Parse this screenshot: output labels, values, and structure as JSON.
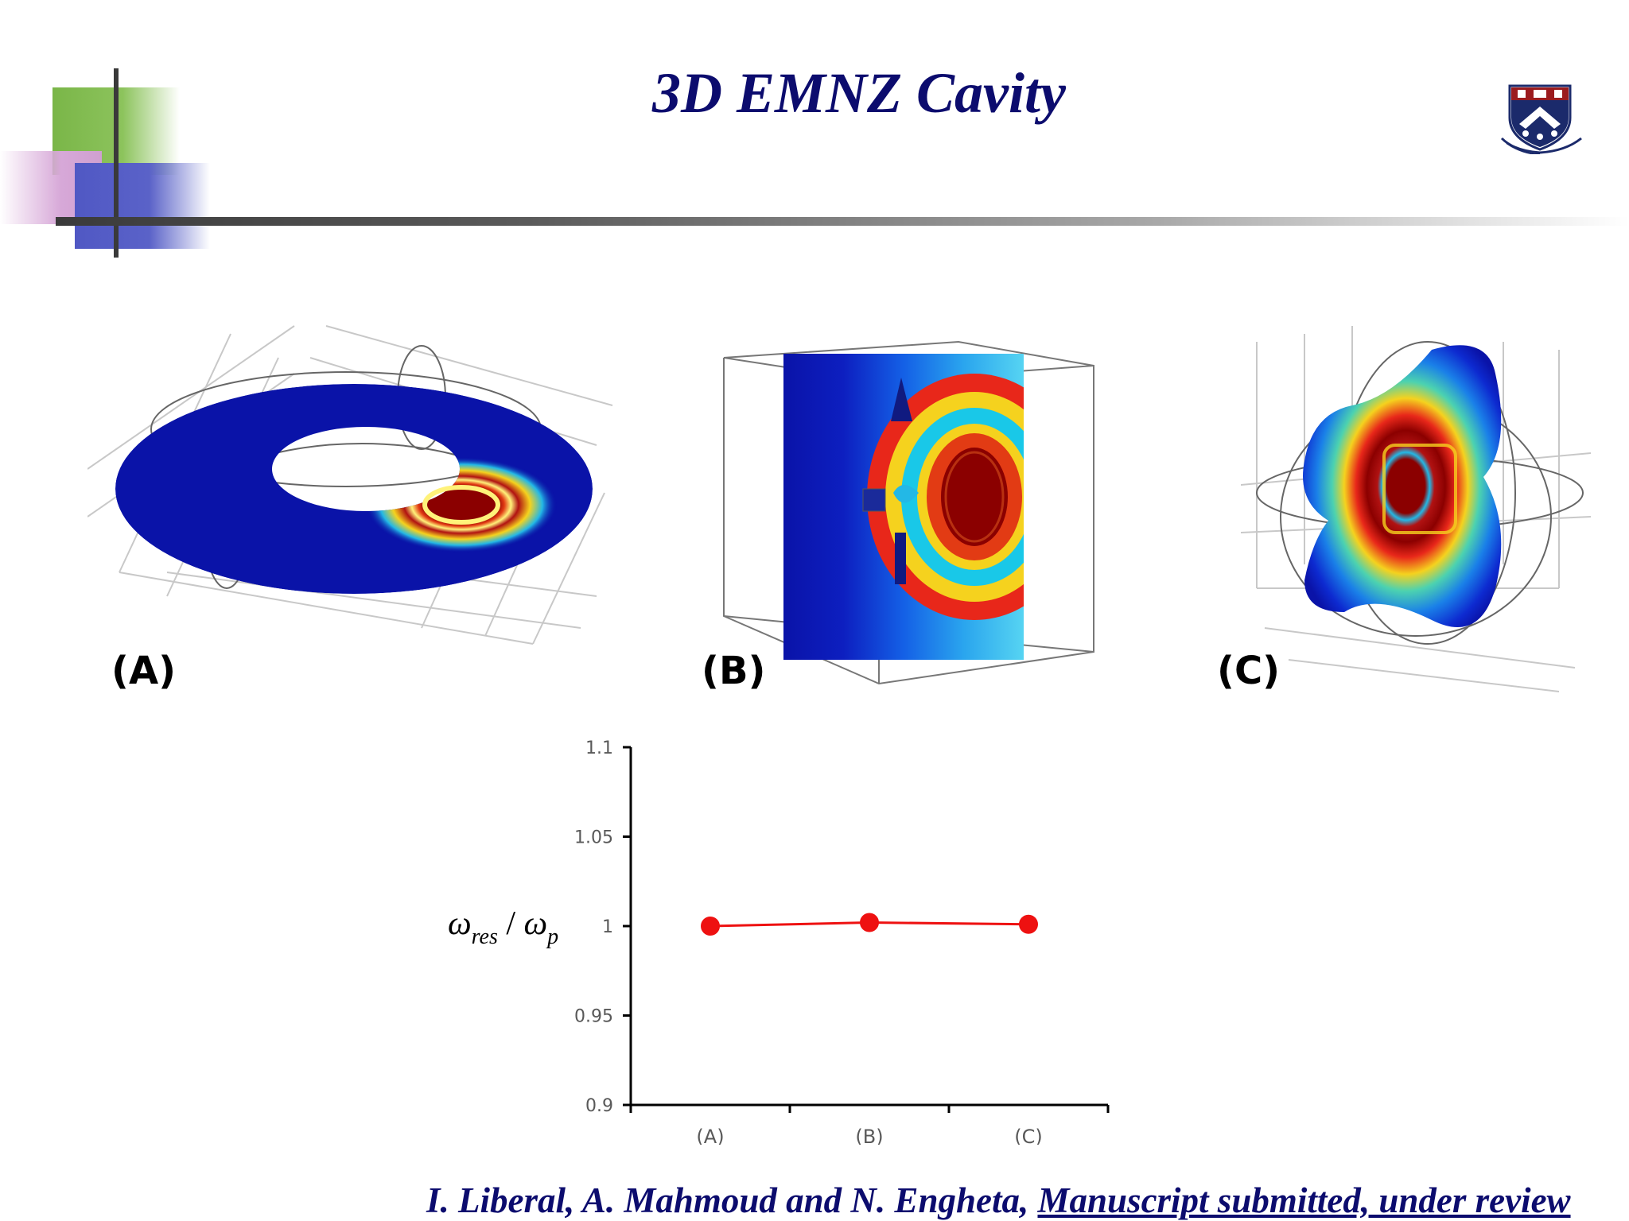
{
  "slide": {
    "title": "3D EMNZ Cavity",
    "panels": [
      {
        "label": "(A)",
        "icon": "torus-field-plot"
      },
      {
        "label": "(B)",
        "icon": "cube-field-plot"
      },
      {
        "label": "(C)",
        "icon": "deformed-cavity-field-plot"
      }
    ],
    "logo_icon": "university-shield-icon",
    "colors": {
      "title": "#0c0c6e",
      "field_low": "#0a13a8",
      "field_mid": "#f5d21e",
      "field_high": "#8b0000",
      "series": "#ee1111",
      "deco_green": "#7ab648",
      "deco_blue": "#5058c4",
      "deco_pink": "#d7a8d8"
    },
    "citation": {
      "authors": "I. Liberal, A. Mahmoud and N. Engheta,",
      "link": "Manuscript submitted, under review"
    }
  },
  "chart_data": {
    "type": "line",
    "categories": [
      "(A)",
      "(B)",
      "(C)"
    ],
    "series": [
      {
        "values": [
          1.0,
          1.002,
          1.001
        ],
        "color": "#ee1111"
      }
    ],
    "ylabel": {
      "main": "ω",
      "sub1": "res",
      "slash": " / ",
      "main2": "ω",
      "sub2": "p"
    },
    "ylim": [
      0.9,
      1.1
    ],
    "yticks": [
      "1.1",
      "1.05",
      "1",
      "0.95",
      "0.9"
    ],
    "ytick_values": [
      1.1,
      1.05,
      1.0,
      0.95,
      0.9
    ],
    "grid": false,
    "legend": "none"
  }
}
